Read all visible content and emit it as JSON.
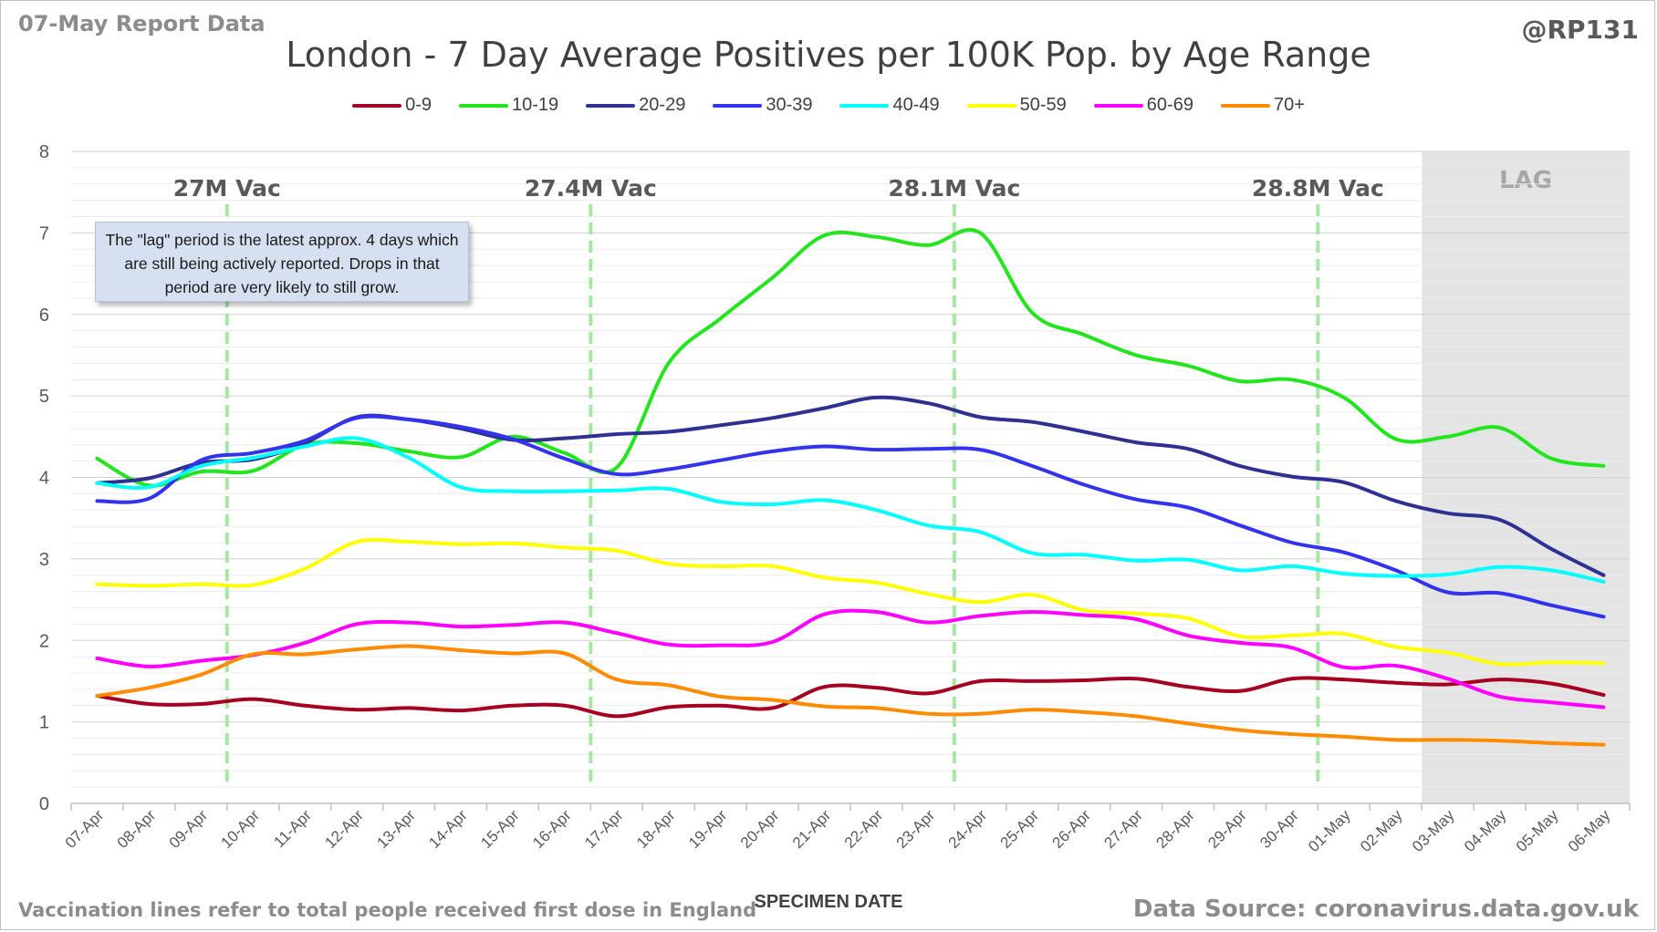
{
  "header": {
    "report_date": "07-May Report Data",
    "handle": "@RP131",
    "title": "London - 7 Day Average Positives per 100K Pop. by Age Range"
  },
  "footer": {
    "note": "Vaccination lines refer to total people received first dose in England",
    "source": "Data Source: coronavirus.data.gov.uk"
  },
  "annotation": {
    "text": "The \"lag\" period is the latest approx. 4 days which are still being actively reported.  Drops in that period are very likely to still grow."
  },
  "chart_data": {
    "type": "line",
    "title": "London - 7 Day Average Positives per 100K Pop. by Age Range",
    "xlabel": "SPECIMEN DATE",
    "ylabel": "",
    "ylim": [
      0,
      8
    ],
    "yticks": [
      0,
      1,
      2,
      3,
      4,
      5,
      6,
      7,
      8
    ],
    "grid": true,
    "legend_position": "top",
    "categories": [
      "07-Apr",
      "08-Apr",
      "09-Apr",
      "10-Apr",
      "11-Apr",
      "12-Apr",
      "13-Apr",
      "14-Apr",
      "15-Apr",
      "16-Apr",
      "17-Apr",
      "18-Apr",
      "19-Apr",
      "20-Apr",
      "21-Apr",
      "22-Apr",
      "23-Apr",
      "24-Apr",
      "25-Apr",
      "26-Apr",
      "27-Apr",
      "28-Apr",
      "29-Apr",
      "30-Apr",
      "01-May",
      "02-May",
      "03-May",
      "04-May",
      "05-May",
      "06-May"
    ],
    "series": [
      {
        "name": "0-9",
        "color": "#a50021",
        "values": [
          1.32,
          1.22,
          1.22,
          1.28,
          1.2,
          1.15,
          1.17,
          1.14,
          1.2,
          1.2,
          1.07,
          1.18,
          1.2,
          1.17,
          1.43,
          1.42,
          1.35,
          1.5,
          1.5,
          1.51,
          1.53,
          1.43,
          1.38,
          1.53,
          1.52,
          1.48,
          1.46,
          1.52,
          1.47,
          1.33
        ]
      },
      {
        "name": "10-19",
        "color": "#22e51d",
        "values": [
          4.23,
          3.9,
          4.07,
          4.08,
          4.4,
          4.42,
          4.32,
          4.25,
          4.5,
          4.3,
          4.12,
          5.4,
          5.95,
          6.45,
          6.97,
          6.95,
          6.85,
          7.0,
          6.02,
          5.75,
          5.5,
          5.37,
          5.18,
          5.2,
          4.98,
          4.47,
          4.5,
          4.61,
          4.23,
          4.14
        ]
      },
      {
        "name": "20-29",
        "color": "#2e3192",
        "values": [
          3.93,
          3.99,
          4.18,
          4.22,
          4.42,
          4.74,
          4.71,
          4.6,
          4.46,
          4.48,
          4.53,
          4.56,
          4.64,
          4.73,
          4.85,
          4.98,
          4.91,
          4.74,
          4.68,
          4.56,
          4.43,
          4.35,
          4.14,
          4.01,
          3.94,
          3.71,
          3.56,
          3.48,
          3.12,
          2.8
        ]
      },
      {
        "name": "30-39",
        "color": "#3333ee",
        "values": [
          3.71,
          3.74,
          4.21,
          4.3,
          4.45,
          4.73,
          4.71,
          4.62,
          4.47,
          4.23,
          4.04,
          4.1,
          4.21,
          4.32,
          4.38,
          4.34,
          4.35,
          4.34,
          4.14,
          3.91,
          3.73,
          3.63,
          3.41,
          3.2,
          3.08,
          2.86,
          2.59,
          2.58,
          2.43,
          2.29
        ]
      },
      {
        "name": "40-49",
        "color": "#00ffff",
        "values": [
          3.93,
          3.88,
          4.14,
          4.24,
          4.38,
          4.48,
          4.24,
          3.88,
          3.83,
          3.83,
          3.84,
          3.86,
          3.7,
          3.67,
          3.72,
          3.6,
          3.41,
          3.33,
          3.07,
          3.05,
          2.98,
          2.99,
          2.86,
          2.91,
          2.82,
          2.79,
          2.81,
          2.9,
          2.86,
          2.72
        ]
      },
      {
        "name": "50-59",
        "color": "#ffff00",
        "values": [
          2.69,
          2.67,
          2.69,
          2.68,
          2.88,
          3.21,
          3.21,
          3.18,
          3.19,
          3.14,
          3.1,
          2.94,
          2.91,
          2.91,
          2.77,
          2.71,
          2.57,
          2.47,
          2.56,
          2.37,
          2.33,
          2.27,
          2.05,
          2.06,
          2.08,
          1.92,
          1.85,
          1.71,
          1.73,
          1.72
        ]
      },
      {
        "name": "60-69",
        "color": "#ff00ff",
        "values": [
          1.78,
          1.68,
          1.75,
          1.82,
          1.97,
          2.2,
          2.22,
          2.17,
          2.19,
          2.22,
          2.09,
          1.95,
          1.94,
          1.98,
          2.32,
          2.35,
          2.22,
          2.3,
          2.35,
          2.31,
          2.26,
          2.06,
          1.97,
          1.91,
          1.67,
          1.69,
          1.53,
          1.31,
          1.24,
          1.18
        ]
      },
      {
        "name": "70+",
        "color": "#ff8c00",
        "values": [
          1.32,
          1.42,
          1.58,
          1.83,
          1.83,
          1.89,
          1.93,
          1.88,
          1.84,
          1.84,
          1.52,
          1.45,
          1.31,
          1.27,
          1.19,
          1.17,
          1.1,
          1.1,
          1.15,
          1.12,
          1.07,
          0.98,
          0.9,
          0.85,
          0.82,
          0.78,
          0.78,
          0.77,
          0.74,
          0.72
        ]
      }
    ],
    "vaccination_lines": [
      {
        "label": "27M Vac",
        "x": 2.5
      },
      {
        "label": "27.4M Vac",
        "x": 9.5
      },
      {
        "label": "28.1M Vac",
        "x": 16.5
      },
      {
        "label": "28.8M Vac",
        "x": 23.5
      }
    ],
    "lag_region": {
      "label": "LAG",
      "start": 26,
      "end": 29
    }
  }
}
